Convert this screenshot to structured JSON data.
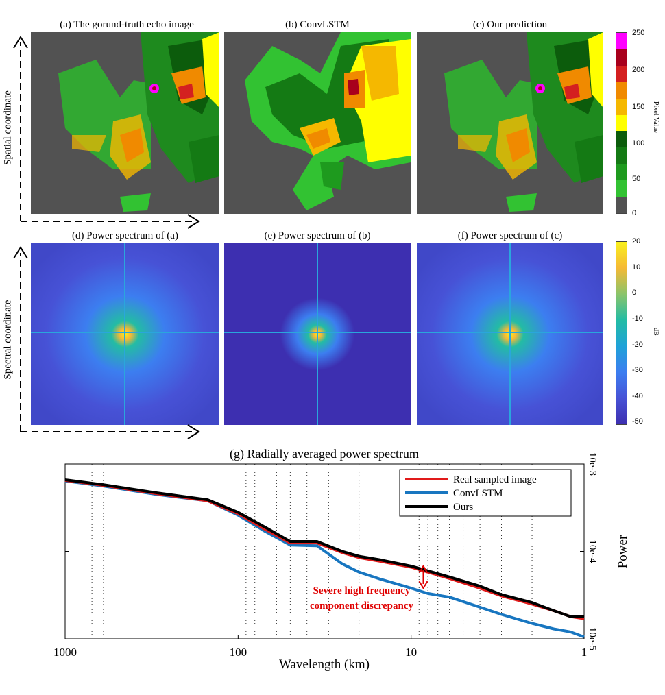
{
  "panels": {
    "a": "(a) The gorund-truth echo image",
    "b": "(b) ConvLSTM",
    "c": "(c) Our prediction",
    "d": "(d) Power spectrum of (a)",
    "e": "(e) Power spectrum of (b)",
    "f": "(f) Power spectrum of (c)"
  },
  "axes_labels": {
    "spatial": "Spatial coordinate",
    "spectral": "Spectral coordinate"
  },
  "colorbar1": {
    "label": "Pixel Value",
    "ticks": [
      "250",
      "200",
      "150",
      "100",
      "50",
      "0"
    ],
    "colors": [
      "#ff00ff",
      "#a8001c",
      "#d42020",
      "#f08a00",
      "#f5b800",
      "#ffff00",
      "#0c5c0c",
      "#147a14",
      "#1e9a1e",
      "#32c232",
      "#525252"
    ]
  },
  "colorbar2": {
    "label": "dB",
    "ticks": [
      "20",
      "10",
      "0",
      "-10",
      "-20",
      "-30",
      "-40",
      "-50"
    ],
    "colors": [
      "#f9f01d",
      "#f5b935",
      "#8bc46a",
      "#23bca4",
      "#1fa2d8",
      "#3c7ef0",
      "#4752d6",
      "#3d2fb0"
    ]
  },
  "chart_data": {
    "type": "line",
    "title": "(g) Radially averaged power spectrum",
    "xlabel": "Wavelength (km)",
    "ylabel": "Power",
    "xscale": "log",
    "yscale": "log",
    "xlim": [
      1000,
      1
    ],
    "ylim": [
      1e-05,
      0.001
    ],
    "xticks": [
      "1000",
      "100",
      "10",
      "1"
    ],
    "yticks": [
      "10e-3",
      "10e-4",
      "10e-5"
    ],
    "grid": "vertical dotted",
    "legend_position": "top-right",
    "series": [
      {
        "name": "Real sampled image",
        "color": "#e11a1a",
        "x": [
          1000,
          600,
          300,
          150,
          100,
          70,
          50,
          35,
          25,
          20,
          15,
          10,
          8,
          6,
          4,
          3,
          2,
          1.5,
          1.2,
          1
        ],
        "y": [
          0.00065,
          0.00057,
          0.00046,
          0.00038,
          0.00027,
          0.00018,
          0.000125,
          0.000125,
          9.7e-05,
          8.5e-05,
          7.7e-05,
          6.6e-05,
          5.8e-05,
          4.9e-05,
          3.8e-05,
          3.1e-05,
          2.5e-05,
          2.1e-05,
          1.8e-05,
          1.7e-05
        ]
      },
      {
        "name": "ConvLSTM",
        "color": "#1876c0",
        "x": [
          1000,
          600,
          300,
          150,
          100,
          70,
          50,
          35,
          25,
          20,
          15,
          10,
          8,
          6,
          4,
          3,
          2,
          1.5,
          1.2,
          1
        ],
        "y": [
          0.00064,
          0.00056,
          0.00045,
          0.00038,
          0.00026,
          0.00017,
          0.000118,
          0.000116,
          7.2e-05,
          5.8e-05,
          4.8e-05,
          3.8e-05,
          3.3e-05,
          3e-05,
          2.3e-05,
          1.9e-05,
          1.5e-05,
          1.3e-05,
          1.2e-05,
          1.05e-05
        ]
      },
      {
        "name": "Ours",
        "color": "#000000",
        "x": [
          1000,
          600,
          300,
          150,
          100,
          70,
          50,
          35,
          25,
          20,
          15,
          10,
          8,
          6,
          4,
          3,
          2,
          1.5,
          1.2,
          1
        ],
        "y": [
          0.00066,
          0.00058,
          0.00047,
          0.00039,
          0.00028,
          0.00019,
          0.00013,
          0.00013,
          0.0001,
          8.8e-05,
          8e-05,
          6.8e-05,
          6e-05,
          5.1e-05,
          4e-05,
          3.2e-05,
          2.6e-05,
          2.1e-05,
          1.8e-05,
          1.8e-05
        ]
      }
    ],
    "annotation": {
      "text_line1": "Severe high frequency",
      "text_line2": "component discrepancy",
      "x": 8.5,
      "y_top": 6.8e-05,
      "y_bottom": 3.8e-05,
      "color": "#e00000"
    }
  }
}
